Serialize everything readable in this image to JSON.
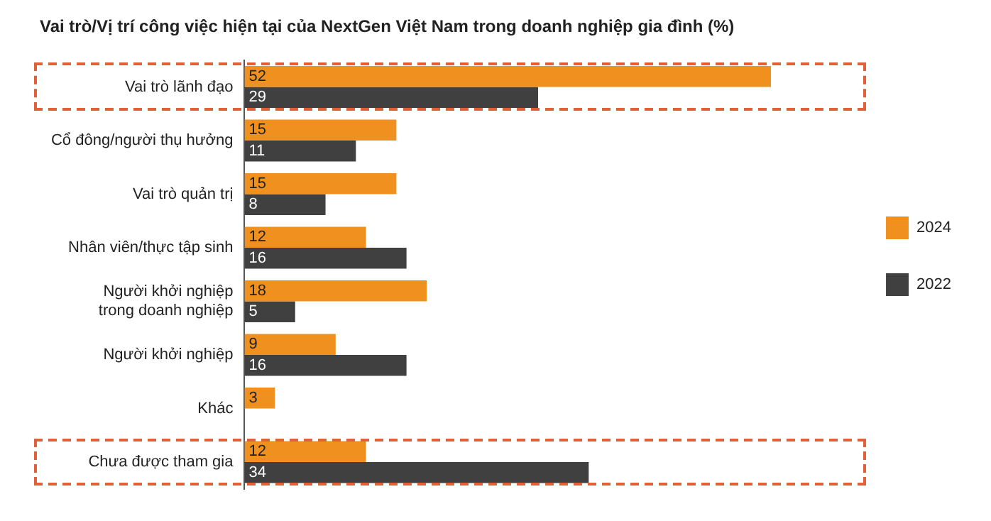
{
  "chart_data": {
    "type": "bar",
    "orientation": "horizontal",
    "title": "Vai trò/Vị trí công việc hiện tại của NextGen Việt Nam trong doanh nghiệp gia đình (%)",
    "categories": [
      "Vai trò lãnh đạo",
      "Cổ đông/người thụ hưởng",
      "Vai trò quản trị",
      "Nhân viên/thực tập sinh",
      "Người khởi nghiệp\ntrong doanh nghiệp",
      "Người khởi nghiệp",
      "Khác",
      "Chưa được tham gia"
    ],
    "series": [
      {
        "name": "2024",
        "color": "#f0901e",
        "values": [
          52,
          15,
          15,
          12,
          18,
          9,
          3,
          12
        ]
      },
      {
        "name": "2022",
        "color": "#404040",
        "values": [
          29,
          11,
          8,
          16,
          5,
          16,
          null,
          34
        ]
      }
    ],
    "data_labels": true,
    "tick_labels": "y",
    "grid": false,
    "legend": "right"
  }
}
